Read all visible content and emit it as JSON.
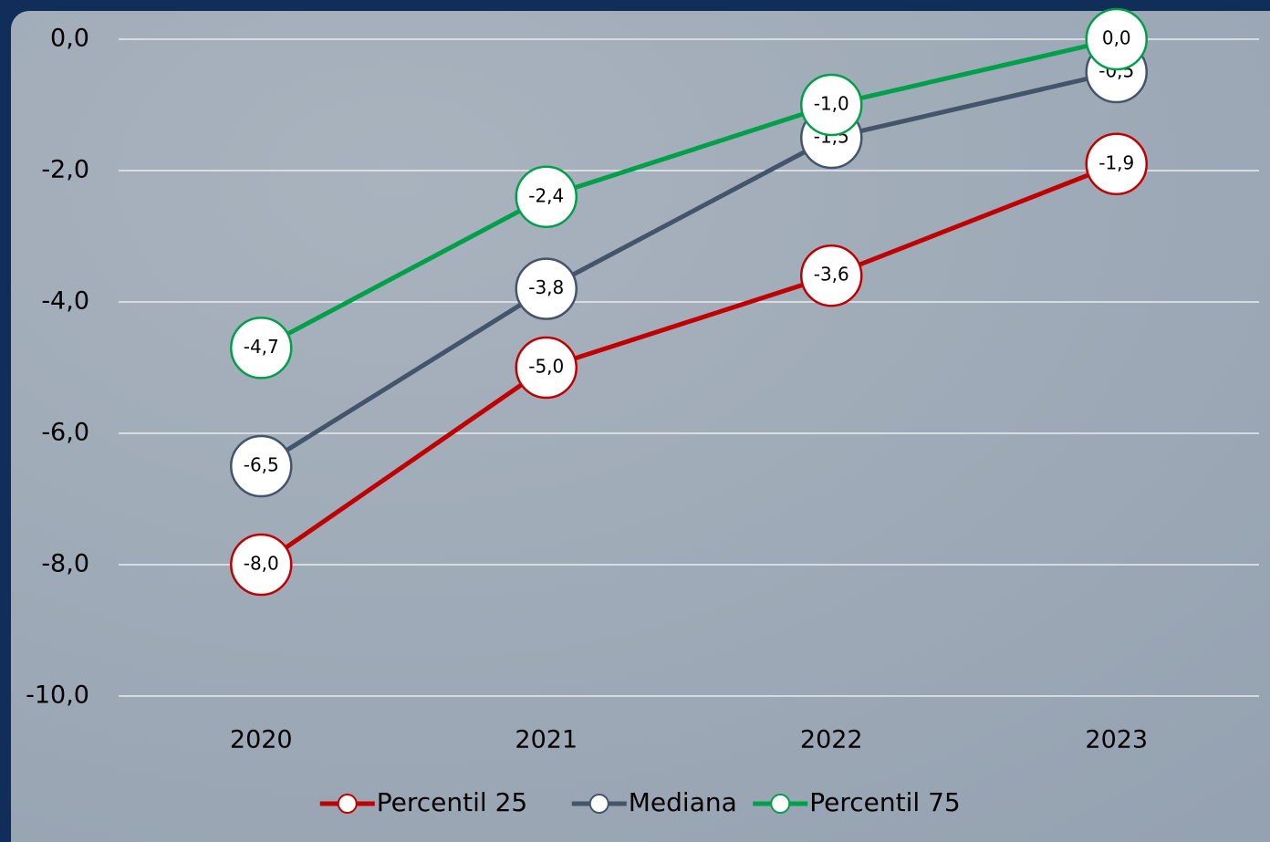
{
  "chart_data": {
    "type": "line",
    "categories": [
      "2020",
      "2021",
      "2022",
      "2023"
    ],
    "series": [
      {
        "name": "Percentil 25",
        "color": "#c00000",
        "values": [
          -8.0,
          -5.0,
          -3.6,
          -1.9
        ],
        "value_labels": [
          "-8,0",
          "-5,0",
          "-3,6",
          "-1,9"
        ]
      },
      {
        "name": "Mediana",
        "color": "#44546a",
        "values": [
          -6.5,
          -3.8,
          -1.5,
          -0.5
        ],
        "value_labels": [
          "-6,5",
          "-3,8",
          "-1,5",
          "-0,5"
        ]
      },
      {
        "name": "Percentil 75",
        "color": "#00a04a",
        "values": [
          -4.7,
          -2.4,
          -1.0,
          0.0
        ],
        "value_labels": [
          "-4,7",
          "-2,4",
          "-1,0",
          "0,0"
        ]
      }
    ],
    "ylim": [
      -10,
      0
    ],
    "yticks": [
      {
        "value": -10,
        "label": "-10,0"
      },
      {
        "value": -8,
        "label": "-8,0"
      },
      {
        "value": -6,
        "label": "-6,0"
      },
      {
        "value": -4,
        "label": "-4,0"
      },
      {
        "value": -2,
        "label": "-2,0"
      },
      {
        "value": 0,
        "label": "0,0"
      }
    ],
    "grid": true,
    "legend": "bottom"
  }
}
